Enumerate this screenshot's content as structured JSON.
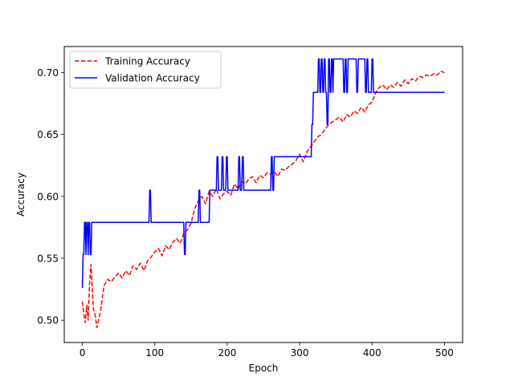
{
  "chart_data": {
    "type": "line",
    "title": "",
    "xlabel": "Epoch",
    "ylabel": "Accuracy",
    "xlim": [
      -25,
      525
    ],
    "ylim": [
      0.482,
      0.721
    ],
    "xticks": [
      0,
      100,
      200,
      300,
      400,
      500
    ],
    "xtick_labels": [
      "0",
      "100",
      "200",
      "300",
      "400",
      "500"
    ],
    "yticks": [
      0.5,
      0.55,
      0.6,
      0.65,
      0.7
    ],
    "ytick_labels": [
      "0.50",
      "0.55",
      "0.60",
      "0.65",
      "0.70"
    ],
    "grid": false,
    "legend_location": "upper left",
    "series": [
      {
        "name": "Training Accuracy",
        "color": "#ff0000",
        "dash": "dashed",
        "x": [
          0,
          2,
          4,
          6,
          8,
          10,
          12,
          15,
          18,
          20,
          25,
          30,
          35,
          40,
          45,
          50,
          55,
          60,
          65,
          70,
          75,
          80,
          85,
          90,
          95,
          100,
          105,
          110,
          115,
          120,
          125,
          130,
          135,
          140,
          145,
          150,
          155,
          160,
          165,
          170,
          175,
          180,
          185,
          190,
          195,
          200,
          205,
          210,
          215,
          220,
          225,
          230,
          235,
          240,
          245,
          250,
          255,
          260,
          265,
          270,
          275,
          280,
          285,
          290,
          295,
          300,
          305,
          310,
          315,
          320,
          325,
          330,
          335,
          340,
          345,
          350,
          355,
          360,
          365,
          370,
          375,
          380,
          385,
          390,
          395,
          400,
          405,
          410,
          415,
          420,
          425,
          430,
          435,
          440,
          445,
          450,
          455,
          460,
          465,
          470,
          475,
          480,
          485,
          490,
          495,
          500
        ],
        "y": [
          0.515,
          0.505,
          0.498,
          0.512,
          0.5,
          0.53,
          0.545,
          0.51,
          0.503,
          0.494,
          0.507,
          0.528,
          0.533,
          0.531,
          0.535,
          0.538,
          0.534,
          0.54,
          0.536,
          0.544,
          0.541,
          0.546,
          0.54,
          0.548,
          0.551,
          0.555,
          0.558,
          0.552,
          0.56,
          0.557,
          0.563,
          0.566,
          0.562,
          0.57,
          0.573,
          0.578,
          0.59,
          0.596,
          0.6,
          0.594,
          0.604,
          0.6,
          0.606,
          0.598,
          0.602,
          0.604,
          0.601,
          0.61,
          0.606,
          0.612,
          0.61,
          0.614,
          0.616,
          0.611,
          0.617,
          0.615,
          0.619,
          0.618,
          0.62,
          0.616,
          0.622,
          0.621,
          0.624,
          0.626,
          0.629,
          0.634,
          0.628,
          0.636,
          0.64,
          0.644,
          0.648,
          0.65,
          0.654,
          0.658,
          0.66,
          0.662,
          0.664,
          0.66,
          0.666,
          0.664,
          0.669,
          0.667,
          0.672,
          0.668,
          0.674,
          0.676,
          0.684,
          0.688,
          0.69,
          0.686,
          0.69,
          0.688,
          0.692,
          0.689,
          0.694,
          0.691,
          0.695,
          0.693,
          0.697,
          0.696,
          0.698,
          0.697,
          0.699,
          0.698,
          0.701,
          0.7
        ]
      },
      {
        "name": "Validation Accuracy",
        "color": "#0000ff",
        "dash": "solid",
        "x": [
          0,
          1,
          2,
          3,
          4,
          5,
          6,
          7,
          8,
          9,
          10,
          11,
          12,
          13,
          14,
          15,
          92,
          93,
          94,
          95,
          96,
          140,
          141,
          142,
          143,
          144,
          160,
          161,
          162,
          163,
          164,
          175,
          176,
          177,
          178,
          185,
          186,
          187,
          188,
          189,
          192,
          193,
          194,
          195,
          196,
          198,
          199,
          200,
          201,
          215,
          216,
          217,
          218,
          219,
          220,
          221,
          222,
          223,
          224,
          225,
          260,
          261,
          262,
          263,
          264,
          265,
          266,
          267,
          268,
          269,
          270,
          316,
          317,
          318,
          319,
          320,
          325,
          326,
          327,
          328,
          329,
          330,
          331,
          332,
          333,
          334,
          335,
          336,
          337,
          338,
          339,
          340,
          341,
          342,
          343,
          344,
          345,
          346,
          347,
          348,
          349,
          350,
          360,
          361,
          362,
          363,
          364,
          365,
          366,
          367,
          378,
          379,
          380,
          381,
          382,
          390,
          391,
          392,
          393,
          394,
          395,
          396,
          397,
          398,
          399,
          400,
          401,
          402,
          403,
          404,
          405,
          406,
          500
        ],
        "y": [
          0.526,
          0.553,
          0.553,
          0.579,
          0.579,
          0.553,
          0.579,
          0.579,
          0.553,
          0.579,
          0.579,
          0.553,
          0.553,
          0.579,
          0.579,
          0.579,
          0.579,
          0.605,
          0.605,
          0.579,
          0.579,
          0.579,
          0.553,
          0.553,
          0.579,
          0.579,
          0.579,
          0.605,
          0.605,
          0.579,
          0.579,
          0.579,
          0.605,
          0.605,
          0.605,
          0.605,
          0.632,
          0.632,
          0.605,
          0.605,
          0.605,
          0.632,
          0.632,
          0.605,
          0.605,
          0.605,
          0.632,
          0.632,
          0.605,
          0.605,
          0.632,
          0.632,
          0.605,
          0.605,
          0.605,
          0.632,
          0.632,
          0.605,
          0.605,
          0.605,
          0.605,
          0.632,
          0.632,
          0.605,
          0.605,
          0.632,
          0.632,
          0.632,
          0.632,
          0.632,
          0.632,
          0.632,
          0.658,
          0.658,
          0.684,
          0.684,
          0.684,
          0.711,
          0.711,
          0.684,
          0.684,
          0.711,
          0.711,
          0.684,
          0.684,
          0.711,
          0.711,
          0.684,
          0.684,
          0.658,
          0.658,
          0.711,
          0.711,
          0.684,
          0.684,
          0.711,
          0.711,
          0.684,
          0.711,
          0.711,
          0.711,
          0.711,
          0.711,
          0.684,
          0.684,
          0.711,
          0.711,
          0.684,
          0.684,
          0.711,
          0.711,
          0.684,
          0.684,
          0.711,
          0.711,
          0.711,
          0.684,
          0.684,
          0.711,
          0.711,
          0.684,
          0.684,
          0.684,
          0.684,
          0.684,
          0.711,
          0.711,
          0.684,
          0.684,
          0.684,
          0.684,
          0.684,
          0.684
        ]
      }
    ]
  }
}
